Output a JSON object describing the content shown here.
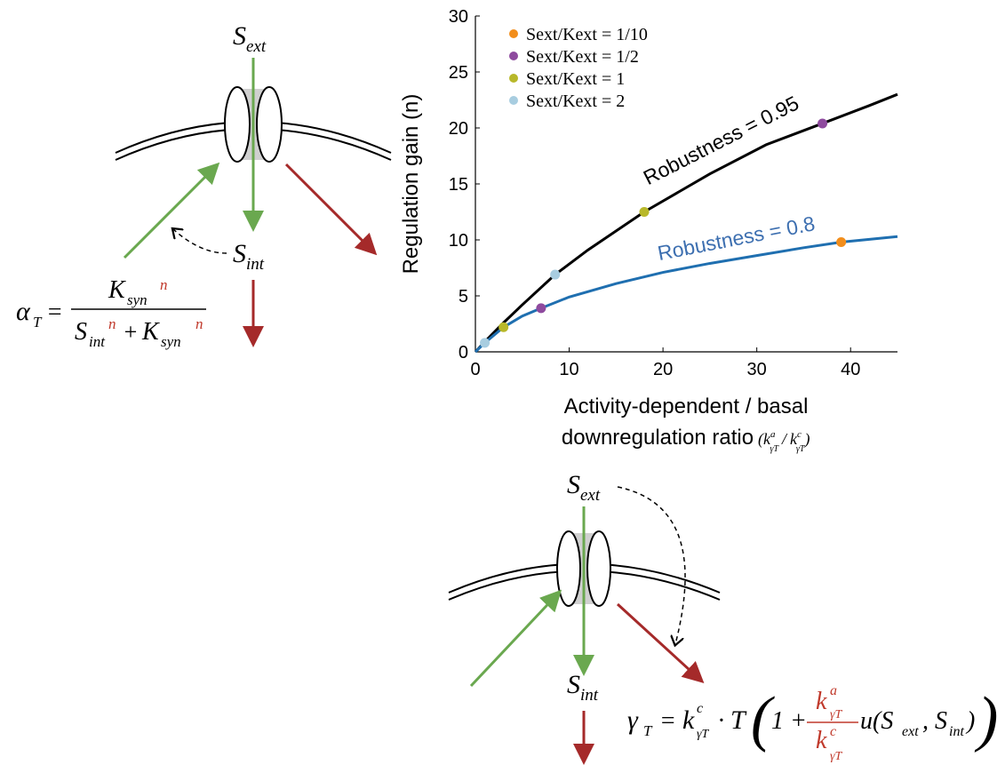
{
  "chart_data": {
    "type": "line",
    "y_label": "Regulation gain (n)",
    "x_label": [
      "Activity-dependent / basal",
      "downregulation ratio"
    ],
    "x_label_ratio": [
      "(",
      "k",
      "a",
      "γT",
      "/",
      "k",
      "c",
      "γT",
      ")"
    ],
    "xlim": [
      0,
      45
    ],
    "xticks": [
      0,
      10,
      20,
      30,
      40
    ],
    "ylim": [
      0,
      30
    ],
    "yticks": [
      0,
      5,
      10,
      15,
      20,
      25,
      30
    ],
    "series": [
      {
        "name": "Robustness = 0.95",
        "color": "#000000",
        "x": [
          0,
          1,
          3,
          5,
          8.5,
          12,
          18,
          25,
          31,
          37,
          42,
          45
        ],
        "values": [
          0,
          0.9,
          2.6,
          4.2,
          6.9,
          9.1,
          12.5,
          15.9,
          18.5,
          20.4,
          22,
          23
        ]
      },
      {
        "name": "Robustness = 0.8",
        "color": "#1f6fb0",
        "x": [
          0,
          1,
          3,
          5,
          7,
          10,
          15,
          20,
          25,
          30,
          35,
          39,
          45
        ],
        "values": [
          0,
          0.8,
          2.2,
          3.2,
          3.9,
          4.9,
          6.1,
          7.1,
          7.9,
          8.6,
          9.3,
          9.8,
          10.3
        ]
      }
    ],
    "points": [
      {
        "name": "Sext/Kext = 1/10",
        "color": "#f28e1c",
        "x": [
          39
        ],
        "values": [
          9.8
        ]
      },
      {
        "name": "Sext/Kext = 1/2",
        "color": "#8e4a9e",
        "x": [
          37,
          7
        ],
        "values": [
          20.4,
          3.9
        ]
      },
      {
        "name": "Sext/Kext = 1",
        "color": "#b8b82a",
        "x": [
          18,
          3
        ],
        "values": [
          12.5,
          2.2
        ]
      },
      {
        "name": "Sext/Kext = 2",
        "color": "#a8cde0",
        "x": [
          8.5,
          1
        ],
        "values": [
          6.9,
          0.8
        ]
      }
    ]
  },
  "diagram_top": {
    "ext": [
      "S",
      "ext"
    ],
    "int": [
      "S",
      "int"
    ],
    "formula": [
      "α",
      "T",
      "=",
      "K",
      "syn",
      "n",
      "S",
      "int",
      "n",
      "+",
      "K",
      "syn",
      "n"
    ]
  },
  "diagram_bottom": {
    "ext": [
      "S",
      "ext"
    ],
    "int": [
      "S",
      "int"
    ],
    "formula": [
      "γ",
      "T",
      "=",
      "k",
      "c",
      "γT",
      "·",
      "T",
      "(",
      "1 +",
      "k",
      "a",
      "γT",
      "k",
      "c",
      "γT",
      "u(S",
      "ext",
      ", S",
      "int",
      ")",
      ")"
    ]
  }
}
